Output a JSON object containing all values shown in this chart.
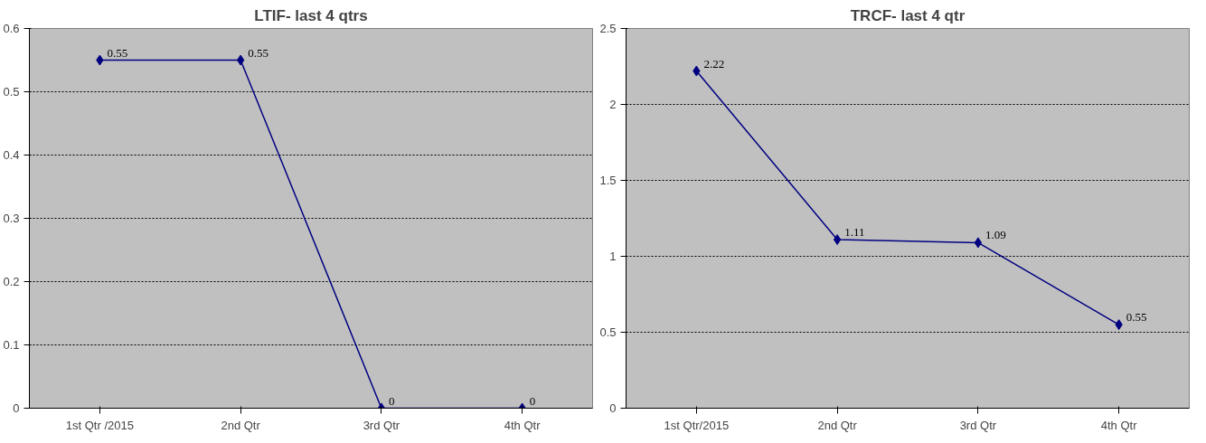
{
  "chart_data": [
    {
      "type": "line",
      "title": "LTIF- last 4 qtrs",
      "categories": [
        "1st Qtr /2015",
        "2nd Qtr",
        "3rd Qtr",
        "4th Qtr"
      ],
      "series": [
        {
          "color": "#000080",
          "values": [
            0.55,
            0.55,
            0,
            0
          ]
        }
      ],
      "ylim": [
        0,
        0.6
      ],
      "yticks": [
        0,
        0.1,
        0.2,
        0.3,
        0.4,
        0.5,
        0.6
      ],
      "grid": "y",
      "marker": "diamond",
      "line_style": "solid",
      "data_labels": true
    },
    {
      "type": "line",
      "title": "TRCF- last 4 qtr",
      "categories": [
        "1st Qtr/2015",
        "2nd Qtr",
        "3rd Qtr",
        "4th Qtr"
      ],
      "series": [
        {
          "color": "#000080",
          "values": [
            2.22,
            1.11,
            1.09,
            0.55
          ]
        }
      ],
      "ylim": [
        0,
        2.5
      ],
      "yticks": [
        0,
        0.5,
        1,
        1.5,
        2,
        2.5
      ],
      "grid": "y",
      "marker": "diamond",
      "line_style": "solid",
      "data_labels": true
    }
  ]
}
